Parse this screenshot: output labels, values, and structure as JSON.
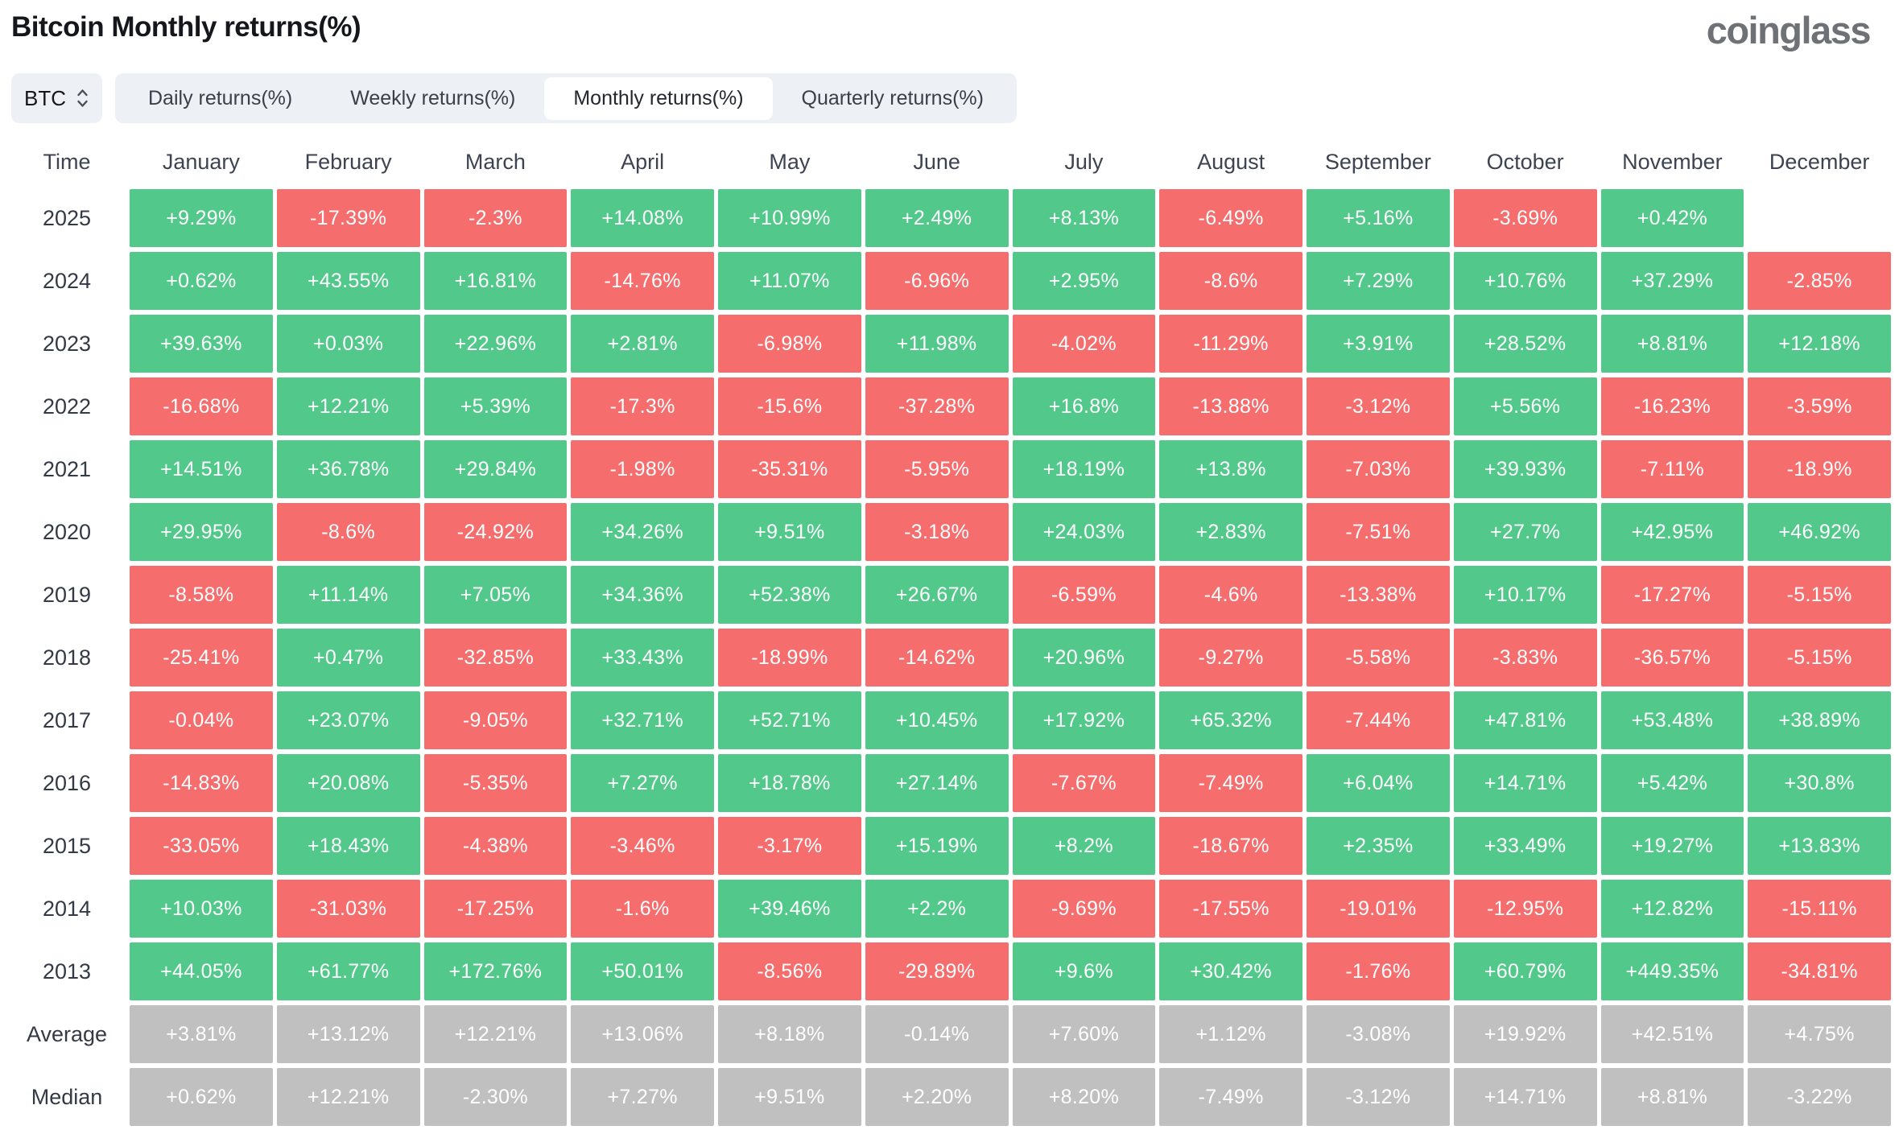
{
  "header": {
    "title": "Bitcoin Monthly returns(%)",
    "brand": "coinglass"
  },
  "controls": {
    "symbol_select": {
      "value": "BTC"
    },
    "tabs": [
      {
        "label": "Daily returns(%)",
        "active": false
      },
      {
        "label": "Weekly returns(%)",
        "active": false
      },
      {
        "label": "Monthly returns(%)",
        "active": true
      },
      {
        "label": "Quarterly returns(%)",
        "active": false
      }
    ]
  },
  "chart_data": {
    "type": "heatmap",
    "title": "Bitcoin Monthly returns(%)",
    "legend": "green = positive monthly return, red = negative monthly return, gray = Average/Median summary rows, blank = no data yet",
    "colors": {
      "positive": "#52c98b",
      "negative": "#f66d6e",
      "summary": "#c0c0c0"
    },
    "columns": [
      "Time",
      "January",
      "February",
      "March",
      "April",
      "May",
      "June",
      "July",
      "August",
      "September",
      "October",
      "November",
      "December"
    ],
    "rows": [
      {
        "label": "2025",
        "summary": false,
        "values": [
          "+9.29%",
          "-17.39%",
          "-2.3%",
          "+14.08%",
          "+10.99%",
          "+2.49%",
          "+8.13%",
          "-6.49%",
          "+5.16%",
          "-3.69%",
          "+0.42%",
          ""
        ]
      },
      {
        "label": "2024",
        "summary": false,
        "values": [
          "+0.62%",
          "+43.55%",
          "+16.81%",
          "-14.76%",
          "+11.07%",
          "-6.96%",
          "+2.95%",
          "-8.6%",
          "+7.29%",
          "+10.76%",
          "+37.29%",
          "-2.85%"
        ]
      },
      {
        "label": "2023",
        "summary": false,
        "values": [
          "+39.63%",
          "+0.03%",
          "+22.96%",
          "+2.81%",
          "-6.98%",
          "+11.98%",
          "-4.02%",
          "-11.29%",
          "+3.91%",
          "+28.52%",
          "+8.81%",
          "+12.18%"
        ]
      },
      {
        "label": "2022",
        "summary": false,
        "values": [
          "-16.68%",
          "+12.21%",
          "+5.39%",
          "-17.3%",
          "-15.6%",
          "-37.28%",
          "+16.8%",
          "-13.88%",
          "-3.12%",
          "+5.56%",
          "-16.23%",
          "-3.59%"
        ]
      },
      {
        "label": "2021",
        "summary": false,
        "values": [
          "+14.51%",
          "+36.78%",
          "+29.84%",
          "-1.98%",
          "-35.31%",
          "-5.95%",
          "+18.19%",
          "+13.8%",
          "-7.03%",
          "+39.93%",
          "-7.11%",
          "-18.9%"
        ]
      },
      {
        "label": "2020",
        "summary": false,
        "values": [
          "+29.95%",
          "-8.6%",
          "-24.92%",
          "+34.26%",
          "+9.51%",
          "-3.18%",
          "+24.03%",
          "+2.83%",
          "-7.51%",
          "+27.7%",
          "+42.95%",
          "+46.92%"
        ]
      },
      {
        "label": "2019",
        "summary": false,
        "values": [
          "-8.58%",
          "+11.14%",
          "+7.05%",
          "+34.36%",
          "+52.38%",
          "+26.67%",
          "-6.59%",
          "-4.6%",
          "-13.38%",
          "+10.17%",
          "-17.27%",
          "-5.15%"
        ]
      },
      {
        "label": "2018",
        "summary": false,
        "values": [
          "-25.41%",
          "+0.47%",
          "-32.85%",
          "+33.43%",
          "-18.99%",
          "-14.62%",
          "+20.96%",
          "-9.27%",
          "-5.58%",
          "-3.83%",
          "-36.57%",
          "-5.15%"
        ]
      },
      {
        "label": "2017",
        "summary": false,
        "values": [
          "-0.04%",
          "+23.07%",
          "-9.05%",
          "+32.71%",
          "+52.71%",
          "+10.45%",
          "+17.92%",
          "+65.32%",
          "-7.44%",
          "+47.81%",
          "+53.48%",
          "+38.89%"
        ]
      },
      {
        "label": "2016",
        "summary": false,
        "values": [
          "-14.83%",
          "+20.08%",
          "-5.35%",
          "+7.27%",
          "+18.78%",
          "+27.14%",
          "-7.67%",
          "-7.49%",
          "+6.04%",
          "+14.71%",
          "+5.42%",
          "+30.8%"
        ]
      },
      {
        "label": "2015",
        "summary": false,
        "values": [
          "-33.05%",
          "+18.43%",
          "-4.38%",
          "-3.46%",
          "-3.17%",
          "+15.19%",
          "+8.2%",
          "-18.67%",
          "+2.35%",
          "+33.49%",
          "+19.27%",
          "+13.83%"
        ]
      },
      {
        "label": "2014",
        "summary": false,
        "values": [
          "+10.03%",
          "-31.03%",
          "-17.25%",
          "-1.6%",
          "+39.46%",
          "+2.2%",
          "-9.69%",
          "-17.55%",
          "-19.01%",
          "-12.95%",
          "+12.82%",
          "-15.11%"
        ]
      },
      {
        "label": "2013",
        "summary": false,
        "values": [
          "+44.05%",
          "+61.77%",
          "+172.76%",
          "+50.01%",
          "-8.56%",
          "-29.89%",
          "+9.6%",
          "+30.42%",
          "-1.76%",
          "+60.79%",
          "+449.35%",
          "-34.81%"
        ]
      },
      {
        "label": "Average",
        "summary": true,
        "values": [
          "+3.81%",
          "+13.12%",
          "+12.21%",
          "+13.06%",
          "+8.18%",
          "-0.14%",
          "+7.60%",
          "+1.12%",
          "-3.08%",
          "+19.92%",
          "+42.51%",
          "+4.75%"
        ]
      },
      {
        "label": "Median",
        "summary": true,
        "values": [
          "+0.62%",
          "+12.21%",
          "-2.30%",
          "+7.27%",
          "+9.51%",
          "+2.20%",
          "+8.20%",
          "-7.49%",
          "-3.12%",
          "+14.71%",
          "+8.81%",
          "-3.22%"
        ]
      }
    ]
  }
}
